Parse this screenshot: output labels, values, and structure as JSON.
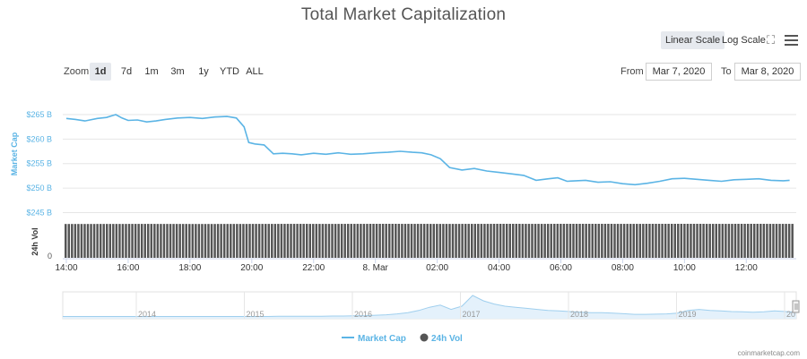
{
  "page": {
    "title": "Total Market Capitalization",
    "credit": "coinmarketcap.com"
  },
  "scale": {
    "linear_label": "Linear Scale",
    "log_label": "Log Scale",
    "active": "linear"
  },
  "zoom": {
    "label": "Zoom",
    "buttons": [
      "1d",
      "7d",
      "1m",
      "3m",
      "1y",
      "YTD",
      "ALL"
    ],
    "active": "1d"
  },
  "range": {
    "from_label": "From",
    "from_value": "Mar 7, 2020",
    "to_label": "To",
    "to_value": "Mar 8, 2020"
  },
  "icons": {
    "menu": "hamburger-menu-icon",
    "fullscreen": "expand-icon"
  },
  "colors": {
    "market_cap_line": "#5bb4e5",
    "volume_bars": "#555555",
    "axis_label": "#5bb4e5",
    "navigator_fill": "#e4f1fb"
  },
  "chart_data": {
    "type": "line",
    "market_cap": {
      "name": "Market Cap",
      "ylabel": "Market Cap",
      "yticks": [
        "$265 B",
        "$260 B",
        "$255 B",
        "$250 B",
        "$245 B"
      ],
      "ytick_values": [
        265,
        260,
        255,
        250,
        245
      ],
      "ylim": [
        244,
        267
      ],
      "unit": "B USD",
      "x_hours": [
        0.0,
        0.3,
        0.6,
        1.0,
        1.3,
        1.6,
        1.8,
        2.0,
        2.3,
        2.6,
        2.9,
        3.2,
        3.6,
        4.0,
        4.4,
        4.8,
        5.2,
        5.5,
        5.75,
        5.9,
        6.1,
        6.4,
        6.7,
        7.0,
        7.3,
        7.6,
        8.0,
        8.4,
        8.8,
        9.2,
        9.6,
        10.0,
        10.4,
        10.8,
        11.2,
        11.5,
        11.8,
        12.1,
        12.4,
        12.8,
        13.2,
        13.6,
        14.0,
        14.4,
        14.8,
        15.2,
        15.6,
        15.9,
        16.2,
        16.5,
        16.8,
        17.2,
        17.6,
        18.0,
        18.4,
        18.8,
        19.2,
        19.6,
        20.0,
        20.4,
        20.8,
        21.2,
        21.6,
        22.0,
        22.4,
        22.8,
        23.2,
        23.4
      ],
      "values": [
        264.2,
        264.0,
        263.7,
        264.2,
        264.4,
        265.0,
        264.3,
        263.8,
        263.9,
        263.5,
        263.7,
        264.0,
        264.3,
        264.4,
        264.2,
        264.5,
        264.6,
        264.3,
        262.5,
        259.3,
        259.0,
        258.8,
        257.0,
        257.1,
        257.0,
        256.8,
        257.1,
        256.9,
        257.2,
        256.9,
        257.0,
        257.2,
        257.3,
        257.5,
        257.3,
        257.2,
        256.8,
        256.0,
        254.2,
        253.7,
        254.0,
        253.5,
        253.2,
        252.9,
        252.6,
        251.6,
        251.9,
        252.1,
        251.4,
        251.5,
        251.6,
        251.2,
        251.3,
        250.9,
        250.7,
        251.0,
        251.4,
        251.9,
        252.0,
        251.8,
        251.6,
        251.4,
        251.7,
        251.8,
        251.9,
        251.6,
        251.5,
        251.6
      ]
    },
    "volume": {
      "name": "24h Vol",
      "ylabel": "24h Vol",
      "yticks": [
        "0"
      ],
      "relative_levels": [
        0.96,
        0.97,
        0.98,
        0.97,
        0.96,
        0.97,
        0.98,
        0.99,
        0.98,
        0.99,
        1.0,
        0.99,
        0.98,
        0.99,
        1.0,
        0.99,
        1.0,
        1.0,
        0.99,
        1.0,
        1.0,
        0.99,
        1.0,
        0.99
      ]
    },
    "xticks": [
      "14:00",
      "16:00",
      "18:00",
      "20:00",
      "22:00",
      "8. Mar",
      "02:00",
      "04:00",
      "06:00",
      "08:00",
      "10:00",
      "12:00"
    ],
    "navigator": {
      "years": [
        "2014",
        "2015",
        "2016",
        "2017",
        "2018",
        "2019",
        "20"
      ],
      "relative_values": [
        0.02,
        0.02,
        0.02,
        0.02,
        0.02,
        0.02,
        0.02,
        0.02,
        0.02,
        0.02,
        0.02,
        0.02,
        0.02,
        0.02,
        0.02,
        0.02,
        0.02,
        0.02,
        0.02,
        0.02,
        0.03,
        0.03,
        0.03,
        0.03,
        0.03,
        0.04,
        0.04,
        0.05,
        0.06,
        0.08,
        0.1,
        0.14,
        0.2,
        0.3,
        0.45,
        0.55,
        0.35,
        0.5,
        1.0,
        0.75,
        0.6,
        0.5,
        0.45,
        0.4,
        0.35,
        0.3,
        0.28,
        0.25,
        0.22,
        0.2,
        0.2,
        0.18,
        0.15,
        0.12,
        0.12,
        0.13,
        0.14,
        0.18,
        0.3,
        0.35,
        0.3,
        0.28,
        0.25,
        0.24,
        0.22,
        0.24,
        0.28,
        0.25,
        0.22
      ]
    },
    "legend": [
      "Market Cap",
      "24h Vol"
    ],
    "legend_placement": "bottom-center",
    "grid": true
  }
}
